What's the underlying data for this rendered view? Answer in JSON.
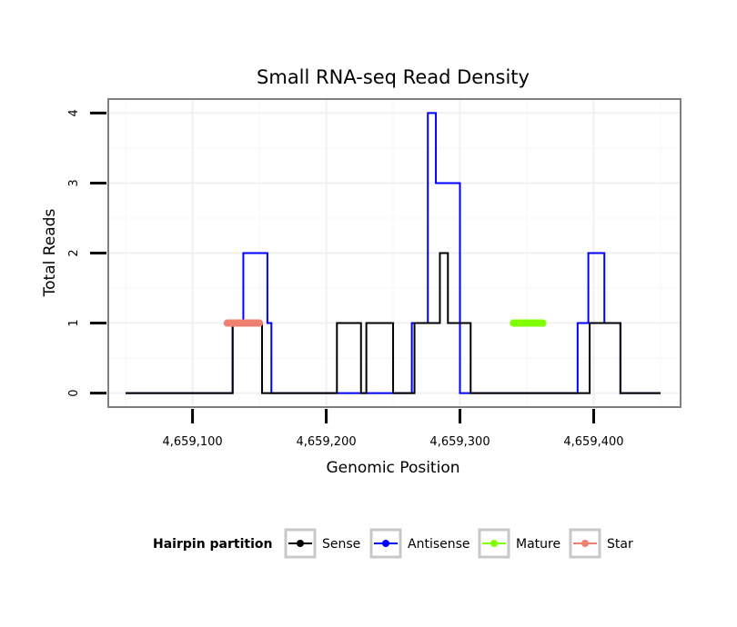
{
  "chart_data": {
    "type": "line",
    "title": "Small RNA-seq Read Density",
    "xlabel": "Genomic Position",
    "ylabel": "Total Reads",
    "xlim": [
      4659037,
      4659465
    ],
    "ylim": [
      -0.2,
      4.2
    ],
    "x_ticks": [
      {
        "value": 4659100,
        "label": "4,659,100"
      },
      {
        "value": 4659200,
        "label": "4,659,200"
      },
      {
        "value": 4659300,
        "label": "4,659,300"
      },
      {
        "value": 4659400,
        "label": "4,659,400"
      }
    ],
    "y_ticks": [
      {
        "value": 0,
        "label": "0"
      },
      {
        "value": 1,
        "label": "1"
      },
      {
        "value": 2,
        "label": "2"
      },
      {
        "value": 3,
        "label": "3"
      },
      {
        "value": 4,
        "label": "4"
      }
    ],
    "grid": true,
    "legend_position": "bottom",
    "legend_title": "Hairpin partition",
    "series": [
      {
        "name": "Sense",
        "color": "#000000",
        "points": [
          [
            4659050,
            0
          ],
          [
            4659130,
            0
          ],
          [
            4659130,
            1
          ],
          [
            4659152,
            1
          ],
          [
            4659152,
            0
          ],
          [
            4659208,
            0
          ],
          [
            4659208,
            1
          ],
          [
            4659226,
            1
          ],
          [
            4659226,
            0
          ],
          [
            4659230,
            0
          ],
          [
            4659230,
            1
          ],
          [
            4659250,
            1
          ],
          [
            4659250,
            0
          ],
          [
            4659266,
            0
          ],
          [
            4659266,
            1
          ],
          [
            4659285,
            1
          ],
          [
            4659285,
            2
          ],
          [
            4659291,
            2
          ],
          [
            4659291,
            1
          ],
          [
            4659308,
            1
          ],
          [
            4659308,
            0
          ],
          [
            4659397,
            0
          ],
          [
            4659397,
            1
          ],
          [
            4659420,
            1
          ],
          [
            4659420,
            0
          ],
          [
            4659450,
            0
          ]
        ]
      },
      {
        "name": "Antisense",
        "color": "#0000ff",
        "points": [
          [
            4659050,
            0
          ],
          [
            4659130,
            0
          ],
          [
            4659130,
            1
          ],
          [
            4659138,
            1
          ],
          [
            4659138,
            2
          ],
          [
            4659156,
            2
          ],
          [
            4659156,
            1
          ],
          [
            4659159,
            1
          ],
          [
            4659159,
            0
          ],
          [
            4659264,
            0
          ],
          [
            4659264,
            1
          ],
          [
            4659276,
            1
          ],
          [
            4659276,
            4
          ],
          [
            4659282,
            4
          ],
          [
            4659282,
            3
          ],
          [
            4659300,
            3
          ],
          [
            4659300,
            0
          ],
          [
            4659388,
            0
          ],
          [
            4659388,
            1
          ],
          [
            4659396,
            1
          ],
          [
            4659396,
            2
          ],
          [
            4659408,
            2
          ],
          [
            4659408,
            1
          ],
          [
            4659420,
            1
          ],
          [
            4659420,
            0
          ],
          [
            4659450,
            0
          ]
        ]
      },
      {
        "name": "Mature",
        "color": "#80ff00",
        "segment": {
          "start": 4659340,
          "end": 4659362,
          "y": 1
        }
      },
      {
        "name": "Star",
        "color": "#f08070",
        "segment": {
          "start": 4659126,
          "end": 4659150,
          "y": 1
        }
      }
    ]
  }
}
